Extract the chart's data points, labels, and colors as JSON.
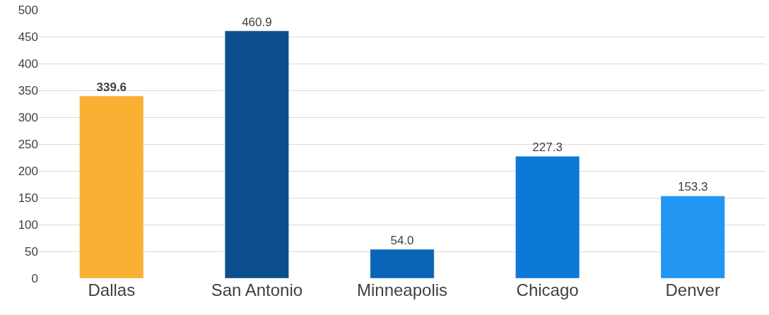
{
  "chart_data": {
    "type": "bar",
    "categories": [
      "Dallas",
      "San Antonio",
      "Minneapolis",
      "Chicago",
      "Denver"
    ],
    "values": [
      339.6,
      460.9,
      54.0,
      227.3,
      153.3
    ],
    "colors": [
      "#fbb034",
      "#0b4f8c",
      "#0a64b8",
      "#0c78d8",
      "#2196f3"
    ],
    "ylim": [
      0,
      500
    ],
    "yticks": [
      0,
      50,
      100,
      150,
      200,
      250,
      300,
      350,
      400,
      450,
      500
    ],
    "value_labels": [
      "339.6",
      "460.9",
      "54.0",
      "227.3",
      "153.3"
    ],
    "grid": "y"
  }
}
